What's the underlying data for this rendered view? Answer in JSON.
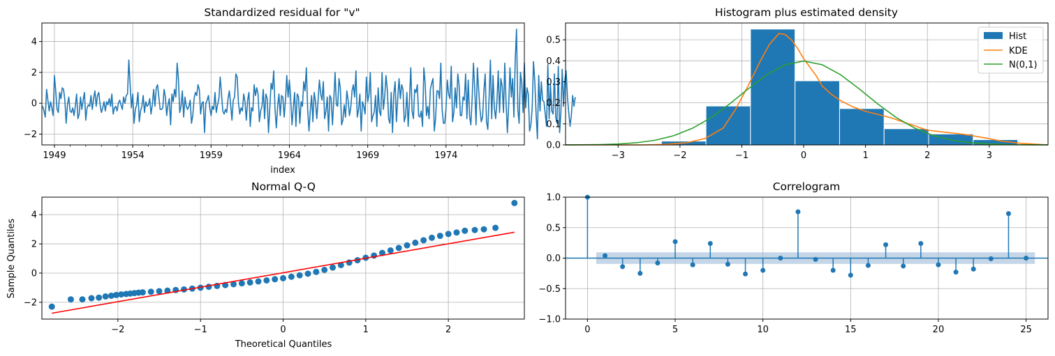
{
  "colors": {
    "blue": "#1f77b4",
    "orange": "#ff7f0e",
    "green": "#2ca02c",
    "red": "#ff0000",
    "band": "#9dbbd9",
    "grid": "#b0b0b0"
  },
  "chart_data": [
    {
      "type": "line",
      "title": "Standardized residual for \"v\"",
      "xlabel": "index",
      "ylabel": "",
      "x_range": [
        1948.2,
        1979.0
      ],
      "ylim": [
        -2.7,
        5.2
      ],
      "x_ticks": [
        1949,
        1954,
        1959,
        1964,
        1969,
        1974
      ],
      "x_tick_labels": [
        "1949",
        "1954",
        "1959",
        "1964",
        "1969",
        "1974"
      ],
      "y_ticks": [
        -2,
        0,
        2,
        4
      ],
      "y_tick_labels": [
        "−2",
        "0",
        "2",
        "4"
      ],
      "grid": true,
      "series": [
        {
          "x_start": 1948.25,
          "x_step": 0.0833333,
          "values": [
            -0.2,
            -0.5,
            -0.9,
            0.9,
            0.2,
            -0.5,
            0.1,
            -0.3,
            -0.8,
            1.8,
            0.8,
            -0.4,
            -0.6,
            0.7,
            0.3,
            1.0,
            0.9,
            0.2,
            -1.3,
            -0.1,
            0.4,
            -0.5,
            -0.6,
            -0.3,
            -0.8,
            -0.2,
            0.6,
            -1.0,
            -0.7,
            0.4,
            -0.4,
            0.2,
            0.7,
            -1.1,
            -0.3,
            -0.1,
            -0.2,
            0.5,
            -0.4,
            0.3,
            0.8,
            -0.2,
            0.5,
            0.7,
            -0.1,
            -0.6,
            -0.3,
            0.1,
            -0.5,
            0.1,
            -0.1,
            0.3,
            -0.2,
            0.6,
            -0.7,
            -0.3,
            -0.2,
            -0.5,
            0.0,
            0.2,
            -0.1,
            -0.4,
            0.4,
            0.0,
            0.5,
            0.6,
            2.8,
            1.2,
            -0.3,
            0.6,
            -1.3,
            -0.4,
            -0.1,
            0.7,
            -1.2,
            -0.5,
            -0.2,
            0.5,
            -0.6,
            0.1,
            -0.2,
            -0.1,
            0.3,
            -0.7,
            -0.1,
            0.9,
            -0.2,
            1.0,
            1.2,
            0.4,
            -0.4,
            -0.4,
            -0.3,
            0.9,
            0.4,
            -0.8,
            -0.1,
            0.3,
            -1.4,
            0.6,
            0.1,
            0.9,
            0.4,
            2.6,
            1.6,
            -0.6,
            -0.2,
            0.8,
            -0.9,
            0.4,
            -0.2,
            -0.4,
            -0.2,
            0.2,
            -1.3,
            -0.8,
            0.3,
            0.7,
            0.5,
            1.2,
            0.9,
            -0.7,
            0.0,
            0.1,
            -1.9,
            0.0,
            0.2,
            0.5,
            -0.3,
            -0.8,
            -0.2,
            -0.4,
            0.7,
            -0.6,
            -0.1,
            0.3,
            1.7,
            0.6,
            -0.5,
            -0.7,
            -0.4,
            -0.6,
            0.3,
            0.8,
            -0.1,
            -1.1,
            0.2,
            0.4,
            1.9,
            1.7,
            0.0,
            -0.7,
            -0.3,
            -0.5,
            0.6,
            0.1,
            -1.1,
            0.2,
            0.7,
            -1.5,
            -0.3,
            -0.5,
            1.2,
            0.5,
            1.0,
            0.6,
            -1.2,
            -0.5,
            -0.2,
            0.9,
            -1.0,
            0.6,
            0.3,
            -1.9,
            -0.3,
            1.3,
            0.9,
            2.1,
            -0.4,
            -1.6,
            -0.2,
            0.6,
            -0.8,
            0.5,
            0.4,
            -0.9,
            0.2,
            1.8,
            0.4,
            1.5,
            0.3,
            -1.4,
            -0.3,
            0.7,
            -1.5,
            0.6,
            0.4,
            -1.3,
            0.1,
            -0.2,
            1.4,
            0.8,
            2.3,
            -0.4,
            -1.8,
            -0.5,
            0.5,
            -1.2,
            0.7,
            0.1,
            -1.0,
            0.2,
            1.5,
            0.6,
            0.2,
            1.4,
            -1.0,
            -0.5,
            0.4,
            -1.8,
            0.5,
            0.3,
            -1.4,
            0.2,
            2.0,
            -0.1,
            -0.2,
            1.6,
            1.0,
            -1.4,
            -1.1,
            -0.1,
            -0.9,
            0.8,
            0.2,
            -0.8,
            -0.3,
            0.8,
            1.2,
            0.4,
            2.1,
            -0.9,
            -0.4,
            0.6,
            -1.8,
            0.1,
            -0.2,
            -0.7,
            1.7,
            0.1,
            0.6,
            2.0,
            -1.2,
            -0.8,
            -0.6,
            0.5,
            -1.5,
            1.0,
            -0.5,
            -0.8,
            2.0,
            -0.4,
            0.4,
            1.8,
            0.9,
            -1.0,
            -1.3,
            0.7,
            -1.9,
            0.6,
            1.4,
            -1.2,
            0.3,
            1.6,
            0.3,
            1.2,
            0.9,
            -1.2,
            -0.8,
            0.7,
            -1.5,
            0.2,
            2.3,
            -0.5,
            -1.0,
            0.9,
            0.7,
            1.2,
            -0.8,
            -0.9,
            -0.5,
            -1.5,
            2.3,
            1.3,
            -0.8,
            -0.2,
            -1.0,
            0.9,
            1.3,
            1.6,
            -1.8,
            -1.0,
            0.8,
            0.8,
            0.3,
            2.6,
            -0.4,
            -1.3,
            -1.3,
            -0.3,
            1.5,
            0.6,
            0.3,
            2.4,
            -1.2,
            -0.6,
            1.0,
            -0.3,
            1.9,
            1.2,
            -0.8,
            -0.8,
            0.4,
            0.2,
            1.9,
            -1.0,
            1.5,
            -0.8,
            -1.4,
            0.3,
            2.6,
            0.9,
            -1.4,
            2.3,
            0.9,
            -0.4,
            -1.2,
            -0.9,
            0.8,
            1.9,
            -1.2,
            -1.7,
            0.4,
            2.8,
            -1.0,
            1.8,
            -0.3,
            -1.0,
            0.1,
            2.1,
            -0.6,
            1.6,
            1.1,
            -0.6,
            2.6,
            0.0,
            -1.9,
            -0.1,
            2.3,
            0.4,
            1.6,
            -0.9,
            2.8,
            4.8,
            -0.4,
            -1.3,
            2.0,
            1.3,
            -0.6,
            2.6,
            -0.3,
            1.0,
            0.6,
            -1.8,
            -1.4,
            -0.3,
            2.7,
            1.4,
            -0.7,
            -2.3,
            1.8,
            -0.5,
            1.4,
            0.2,
            0.1,
            -0.7,
            -1.5,
            2.5,
            -1.0,
            1.2,
            -0.5,
            -0.7,
            1.9,
            -0.9,
            -1.3,
            2.4,
            -1.9,
            -0.6,
            2.2,
            -0.2,
            1.5,
            2.1,
            0.4,
            -0.6,
            -1.5,
            -0.8,
            0.5,
            -0.2,
            0.4
          ]
        }
      ]
    },
    {
      "type": "bar",
      "title": "Histogram plus estimated density",
      "xlabel": "",
      "ylabel": "",
      "xlim": [
        -3.85,
        3.95
      ],
      "ylim": [
        0,
        0.58
      ],
      "x_ticks": [
        -3,
        -2,
        -1,
        0,
        1,
        2,
        3
      ],
      "x_tick_labels": [
        "−3",
        "−2",
        "−1",
        "0",
        "1",
        "2",
        "3"
      ],
      "y_ticks": [
        0,
        0.1,
        0.2,
        0.3,
        0.4,
        0.5
      ],
      "y_tick_labels": [
        "0.0",
        "0.1",
        "0.2",
        "0.3",
        "0.4",
        "0.5"
      ],
      "grid": true,
      "legend_position": "top-right",
      "hist": {
        "name": "Hist",
        "edges": [
          -2.3,
          -1.58,
          -0.86,
          -0.14,
          0.58,
          1.3,
          2.02,
          2.74,
          3.46
        ],
        "values": [
          0.018,
          0.185,
          0.551,
          0.305,
          0.173,
          0.077,
          0.052,
          0.025
        ]
      },
      "series": [
        {
          "name": "KDE",
          "x": [
            -3.85,
            -2.6,
            -2.2,
            -1.9,
            -1.6,
            -1.3,
            -1.1,
            -0.9,
            -0.7,
            -0.55,
            -0.4,
            -0.3,
            -0.2,
            -0.1,
            0.0,
            0.1,
            0.2,
            0.3,
            0.45,
            0.6,
            0.8,
            1.0,
            1.2,
            1.4,
            1.6,
            1.8,
            2.0,
            2.3,
            2.6,
            2.9,
            3.2,
            3.5,
            3.95
          ],
          "y": [
            0.0,
            0.0,
            0.003,
            0.01,
            0.03,
            0.08,
            0.17,
            0.28,
            0.4,
            0.48,
            0.53,
            0.525,
            0.5,
            0.46,
            0.41,
            0.37,
            0.33,
            0.28,
            0.24,
            0.21,
            0.18,
            0.16,
            0.145,
            0.13,
            0.11,
            0.09,
            0.07,
            0.06,
            0.05,
            0.035,
            0.018,
            0.008,
            0.0
          ]
        },
        {
          "name": "N(0,1)",
          "x": [
            -3.85,
            -3.6,
            -3.3,
            -3.0,
            -2.7,
            -2.4,
            -2.1,
            -1.8,
            -1.5,
            -1.2,
            -0.9,
            -0.6,
            -0.3,
            0.0,
            0.3,
            0.6,
            0.9,
            1.2,
            1.5,
            1.8,
            2.1,
            2.4,
            2.7,
            3.0,
            3.3,
            3.6,
            3.95
          ],
          "y": [
            0.0002,
            0.0006,
            0.0017,
            0.0044,
            0.0104,
            0.0224,
            0.044,
            0.079,
            0.1295,
            0.1942,
            0.2661,
            0.3332,
            0.3814,
            0.3989,
            0.3814,
            0.3332,
            0.2661,
            0.1942,
            0.1295,
            0.079,
            0.044,
            0.0224,
            0.0104,
            0.0044,
            0.0017,
            0.0006,
            0.0002
          ]
        }
      ]
    },
    {
      "type": "scatter",
      "title": "Normal Q-Q",
      "xlabel": "Theoretical Quantiles",
      "ylabel": "Sample Quantiles",
      "xlim": [
        -2.92,
        2.92
      ],
      "ylim": [
        -3.15,
        5.2
      ],
      "x_ticks": [
        -2,
        -1,
        0,
        1,
        2
      ],
      "x_tick_labels": [
        "−2",
        "−1",
        "0",
        "1",
        "2"
      ],
      "y_ticks": [
        -2,
        0,
        2,
        4
      ],
      "y_tick_labels": [
        "−2",
        "0",
        "2",
        "4"
      ],
      "grid": true,
      "reference_line": {
        "x": [
          -2.8,
          2.8
        ],
        "y": [
          -2.75,
          2.8
        ]
      },
      "points": [
        [
          -2.8,
          -2.3
        ],
        [
          -2.57,
          -1.8
        ],
        [
          -2.43,
          -1.8
        ],
        [
          -2.32,
          -1.72
        ],
        [
          -2.23,
          -1.68
        ],
        [
          -2.15,
          -1.6
        ],
        [
          -2.08,
          -1.55
        ],
        [
          -2.02,
          -1.5
        ],
        [
          -1.96,
          -1.46
        ],
        [
          -1.9,
          -1.43
        ],
        [
          -1.85,
          -1.4
        ],
        [
          -1.8,
          -1.37
        ],
        [
          -1.75,
          -1.34
        ],
        [
          -1.7,
          -1.32
        ],
        [
          -1.6,
          -1.28
        ],
        [
          -1.5,
          -1.24
        ],
        [
          -1.4,
          -1.2
        ],
        [
          -1.3,
          -1.16
        ],
        [
          -1.2,
          -1.12
        ],
        [
          -1.1,
          -1.06
        ],
        [
          -1.0,
          -1.0
        ],
        [
          -0.9,
          -0.94
        ],
        [
          -0.8,
          -0.88
        ],
        [
          -0.7,
          -0.82
        ],
        [
          -0.6,
          -0.76
        ],
        [
          -0.5,
          -0.7
        ],
        [
          -0.4,
          -0.64
        ],
        [
          -0.3,
          -0.57
        ],
        [
          -0.2,
          -0.5
        ],
        [
          -0.1,
          -0.42
        ],
        [
          0.0,
          -0.35
        ],
        [
          0.1,
          -0.25
        ],
        [
          0.2,
          -0.15
        ],
        [
          0.3,
          -0.04
        ],
        [
          0.4,
          0.08
        ],
        [
          0.5,
          0.22
        ],
        [
          0.6,
          0.38
        ],
        [
          0.7,
          0.55
        ],
        [
          0.8,
          0.72
        ],
        [
          0.9,
          0.88
        ],
        [
          1.0,
          1.05
        ],
        [
          1.1,
          1.2
        ],
        [
          1.2,
          1.38
        ],
        [
          1.3,
          1.55
        ],
        [
          1.4,
          1.72
        ],
        [
          1.5,
          1.9
        ],
        [
          1.6,
          2.08
        ],
        [
          1.7,
          2.25
        ],
        [
          1.8,
          2.42
        ],
        [
          1.9,
          2.55
        ],
        [
          2.0,
          2.68
        ],
        [
          2.1,
          2.78
        ],
        [
          2.2,
          2.9
        ],
        [
          2.32,
          2.95
        ],
        [
          2.43,
          3.0
        ],
        [
          2.57,
          3.1
        ],
        [
          2.8,
          4.8
        ]
      ]
    },
    {
      "type": "bar",
      "title": "Correlogram",
      "xlabel": "",
      "ylabel": "",
      "xlim": [
        -1.25,
        26.25
      ],
      "ylim": [
        -1.0,
        1.0
      ],
      "x_ticks": [
        0,
        5,
        10,
        15,
        20,
        25
      ],
      "x_tick_labels": [
        "0",
        "5",
        "10",
        "15",
        "20",
        "25"
      ],
      "y_ticks": [
        -1.0,
        -0.5,
        0.0,
        0.5,
        1.0
      ],
      "y_tick_labels": [
        "−1.0",
        "−0.5",
        "0.0",
        "0.5",
        "1.0"
      ],
      "grid": true,
      "confidence_band": 0.095,
      "lags": [
        0,
        1,
        2,
        3,
        4,
        5,
        6,
        7,
        8,
        9,
        10,
        11,
        12,
        13,
        14,
        15,
        16,
        17,
        18,
        19,
        20,
        21,
        22,
        23,
        24,
        25
      ],
      "values": [
        1.0,
        0.04,
        -0.14,
        -0.25,
        -0.08,
        0.27,
        -0.11,
        0.24,
        -0.1,
        -0.26,
        -0.2,
        0.0,
        0.76,
        -0.02,
        -0.2,
        -0.28,
        -0.12,
        0.22,
        -0.13,
        0.24,
        -0.11,
        -0.23,
        -0.18,
        -0.01,
        0.73,
        0.0
      ]
    }
  ]
}
